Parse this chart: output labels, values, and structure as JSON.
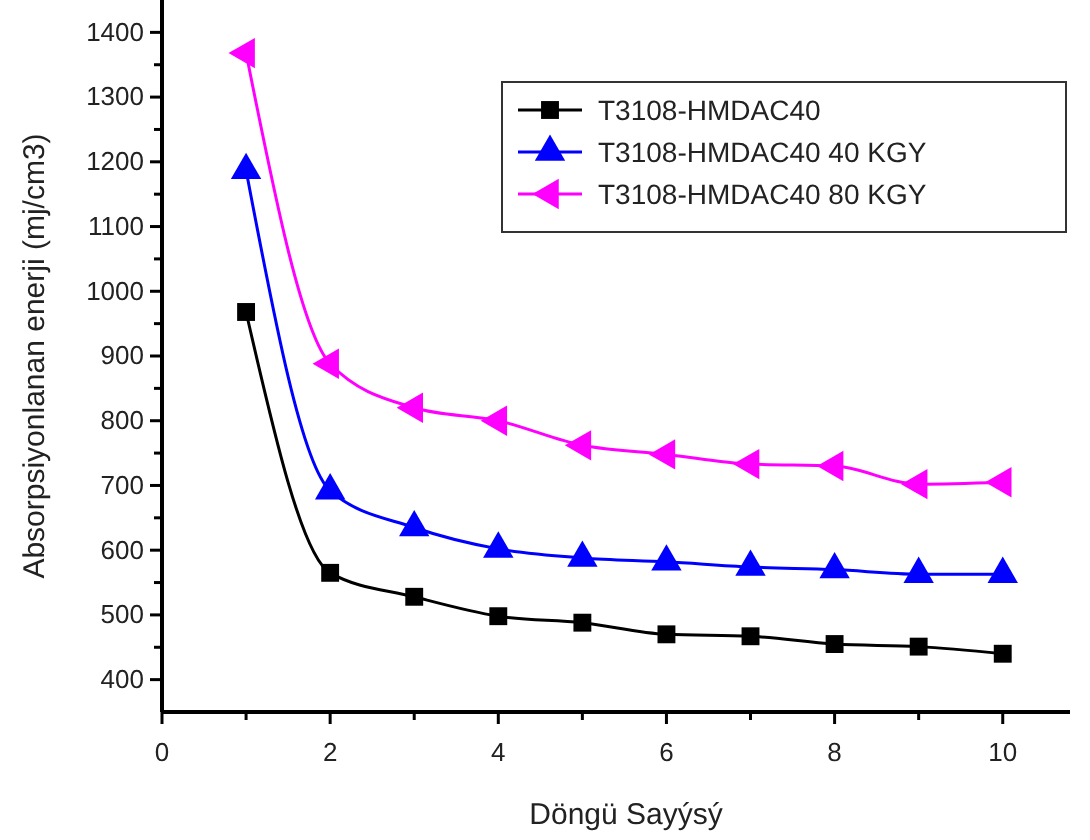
{
  "chart_data": {
    "type": "line",
    "xlabel": "Döngü Sayýsý",
    "ylabel": "Absorpsiyonlanan enerji (mj/cm3)",
    "x": [
      1,
      2,
      3,
      4,
      5,
      6,
      7,
      8,
      9,
      10
    ],
    "xlim": [
      0,
      10.8
    ],
    "xticks": [
      0,
      {
        "value": 1,
        "label": null
      },
      2,
      {
        "value": 3,
        "label": null
      },
      4,
      {
        "value": 5,
        "label": null
      },
      6,
      {
        "value": 7,
        "label": null
      },
      8,
      {
        "value": 9,
        "label": null
      },
      10
    ],
    "ylim": [
      350,
      1450
    ],
    "yticks": [
      400,
      {
        "value": 450,
        "label": null
      },
      500,
      {
        "value": 550,
        "label": null
      },
      600,
      {
        "value": 650,
        "label": null
      },
      700,
      {
        "value": 750,
        "label": null
      },
      800,
      {
        "value": 850,
        "label": null
      },
      900,
      {
        "value": 950,
        "label": null
      },
      1000,
      {
        "value": 1050,
        "label": null
      },
      1100,
      {
        "value": 1150,
        "label": null
      },
      1200,
      {
        "value": 1250,
        "label": null
      },
      1300,
      {
        "value": 1350,
        "label": null
      },
      1400
    ],
    "legend": "top right",
    "grid": false,
    "line_style": "solid",
    "series": [
      {
        "name": "T3108-HMDAC40",
        "color": "#000000",
        "marker": "square",
        "values": [
          968,
          565,
          528,
          498,
          488,
          470,
          467,
          455,
          451,
          440
        ]
      },
      {
        "name": "T3108-HMDAC40 40 KGY",
        "color": "#0000ff",
        "marker": "triangle",
        "values": [
          1187,
          692,
          635,
          602,
          588,
          582,
          574,
          570,
          563,
          563
        ]
      },
      {
        "name": "T3108-HMDAC40 80 KGY",
        "color": "#ff00ff",
        "marker": "triangle-left",
        "values": [
          1368,
          888,
          820,
          800,
          762,
          748,
          733,
          730,
          702,
          705
        ]
      }
    ]
  }
}
